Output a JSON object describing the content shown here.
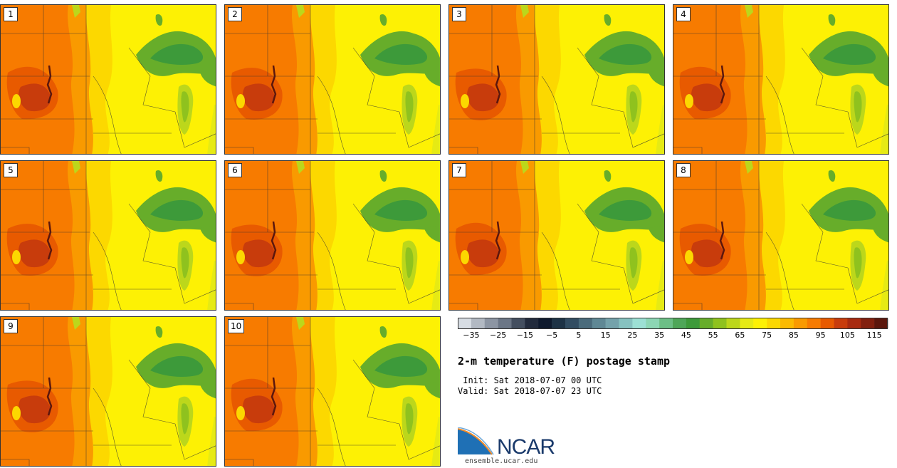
{
  "figure": {
    "title": "2-m temperature (F) postage stamp",
    "init_line": " Init: Sat 2018-07-07 00 UTC",
    "valid_line": "Valid: Sat 2018-07-07 23 UTC",
    "org_name": "NCAR",
    "org_url": "ensemble.ucar.edu"
  },
  "panels": [
    "1",
    "2",
    "3",
    "4",
    "5",
    "6",
    "7",
    "8",
    "9",
    "10"
  ],
  "colorbar": {
    "units": "F",
    "bins": [
      -40,
      -35,
      -30,
      -25,
      -20,
      -15,
      -10,
      -5,
      0,
      5,
      10,
      15,
      20,
      25,
      30,
      35,
      40,
      45,
      50,
      55,
      60,
      65,
      70,
      75,
      80,
      85,
      90,
      95,
      100,
      105,
      110,
      115,
      120
    ],
    "colors": [
      "#d7dde4",
      "#b2b9c3",
      "#8c95a3",
      "#6b7686",
      "#444f60",
      "#222b3d",
      "#0f1a2e",
      "#1e3346",
      "#324d62",
      "#4a6b7c",
      "#5f8895",
      "#74a2ab",
      "#86c2c0",
      "#9ce0d4",
      "#8cd6b4",
      "#6cbf86",
      "#4ea658",
      "#3d9a3a",
      "#67ad2a",
      "#8fc21e",
      "#bcd71b",
      "#e6ea14",
      "#fdf104",
      "#fcd800",
      "#fbba00",
      "#f99a00",
      "#f77b00",
      "#e85a00",
      "#c83c0c",
      "#a82a10",
      "#82200f",
      "#5c170d"
    ],
    "tick_labels": [
      "−35",
      "−25",
      "−15",
      "−5",
      "5",
      "15",
      "25",
      "35",
      "45",
      "55",
      "65",
      "75",
      "85",
      "95",
      "105",
      "115"
    ]
  },
  "legend_colors": {
    "hot": "#f77b00",
    "warm": "#fbba00",
    "mild": "#fdf104",
    "cool_lake": "#4ea658",
    "extreme": "#c83c0c"
  }
}
